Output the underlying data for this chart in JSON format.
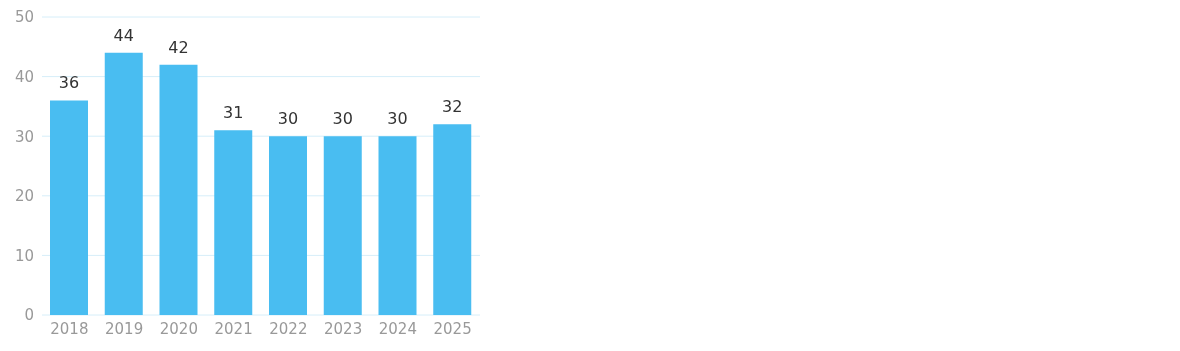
{
  "chart_data": {
    "type": "bar",
    "categories": [
      "2018",
      "2019",
      "2020",
      "2021",
      "2022",
      "2023",
      "2024",
      "2025"
    ],
    "values": [
      36,
      44,
      42,
      31,
      30,
      30,
      30,
      32
    ],
    "color": "#49bdf1",
    "ylim": [
      0,
      50
    ],
    "yticks": [
      0,
      10,
      20,
      30,
      40,
      50
    ],
    "grid": "y",
    "data_labels": true
  }
}
